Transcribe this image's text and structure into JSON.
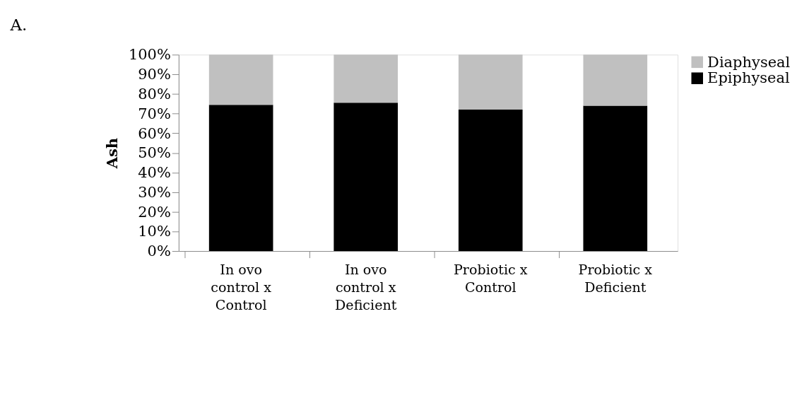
{
  "chart_data": {
    "type": "bar",
    "title": "A.",
    "ylabel": "Ash",
    "categories": [
      "In ovo control x Control",
      "In ovo control x Deficient",
      "Probiotic x Control",
      "Probiotic x Deficient"
    ],
    "stacked": true,
    "series": [
      {
        "name": "Epiphyseal",
        "color": "#000000",
        "values": [
          74.5,
          75.5,
          72,
          74
        ]
      },
      {
        "name": "Diaphyseal",
        "color": "#c0c0c0",
        "values": [
          25.5,
          24.5,
          28,
          26
        ]
      }
    ],
    "ylim": [
      0,
      100
    ],
    "yticks": [
      {
        "value": 0,
        "label": "0%"
      },
      {
        "value": 10,
        "label": "10%"
      },
      {
        "value": 20,
        "label": "20%"
      },
      {
        "value": 30,
        "label": "30%"
      },
      {
        "value": 40,
        "label": "40%"
      },
      {
        "value": 50,
        "label": "50%"
      },
      {
        "value": 60,
        "label": "60%"
      },
      {
        "value": 70,
        "label": "70%"
      },
      {
        "value": 80,
        "label": "80%"
      },
      {
        "value": 90,
        "label": "90%"
      },
      {
        "value": 100,
        "label": "100%"
      }
    ],
    "grid": false,
    "legend": "right"
  }
}
